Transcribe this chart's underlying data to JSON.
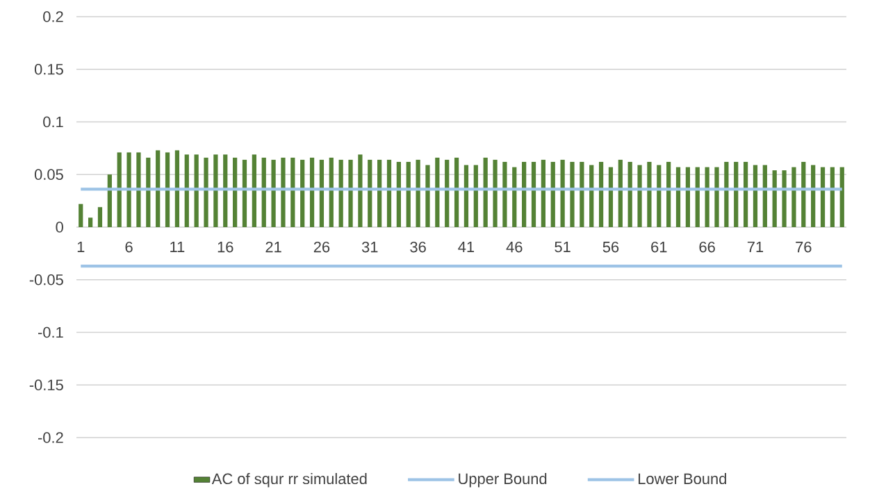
{
  "chart_data": {
    "type": "bar",
    "categories": [
      "1",
      null,
      null,
      null,
      null,
      "6",
      null,
      null,
      null,
      null,
      "11",
      null,
      null,
      null,
      null,
      "16",
      null,
      null,
      null,
      null,
      "21",
      null,
      null,
      null,
      null,
      "26",
      null,
      null,
      null,
      null,
      "31",
      null,
      null,
      null,
      null,
      "36",
      null,
      null,
      null,
      null,
      "41",
      null,
      null,
      null,
      null,
      "46",
      null,
      null,
      null,
      null,
      "51",
      null,
      null,
      null,
      null,
      "56",
      null,
      null,
      null,
      null,
      "61",
      null,
      null,
      null,
      null,
      "66",
      null,
      null,
      null,
      null,
      "71",
      null,
      null,
      null,
      null,
      "76",
      null,
      null,
      null,
      null
    ],
    "series": [
      {
        "name": "AC of squr rr simulated",
        "color": "#548235",
        "values": [
          0.022,
          0.009,
          0.019,
          0.05,
          0.071,
          0.071,
          0.071,
          0.066,
          0.073,
          0.071,
          0.073,
          0.069,
          0.069,
          0.066,
          0.069,
          0.069,
          0.066,
          0.064,
          0.069,
          0.066,
          0.064,
          0.066,
          0.066,
          0.064,
          0.066,
          0.064,
          0.066,
          0.064,
          0.064,
          0.069,
          0.064,
          0.064,
          0.064,
          0.062,
          0.062,
          0.064,
          0.059,
          0.066,
          0.064,
          0.066,
          0.059,
          0.059,
          0.066,
          0.064,
          0.062,
          0.057,
          0.062,
          0.062,
          0.064,
          0.062,
          0.064,
          0.062,
          0.062,
          0.059,
          0.062,
          0.057,
          0.064,
          0.062,
          0.059,
          0.062,
          0.059,
          0.062,
          0.057,
          0.057,
          0.057,
          0.057,
          0.057,
          0.062,
          0.062,
          0.062,
          0.059,
          0.059,
          0.054,
          0.054,
          0.057,
          0.062,
          0.059,
          0.057,
          0.057,
          0.057
        ]
      },
      {
        "name": "Upper Bound",
        "type": "line",
        "color": "#9dc3e6",
        "values": [
          0.036,
          0.036,
          0.036,
          0.036,
          0.036,
          0.036,
          0.036,
          0.036,
          0.036,
          0.036,
          0.036,
          0.036,
          0.036,
          0.036,
          0.036,
          0.036,
          0.036,
          0.036,
          0.036,
          0.036,
          0.036,
          0.036,
          0.036,
          0.036,
          0.036,
          0.036,
          0.036,
          0.036,
          0.036,
          0.036,
          0.036,
          0.036,
          0.036,
          0.036,
          0.036,
          0.036,
          0.036,
          0.036,
          0.036,
          0.036,
          0.036,
          0.036,
          0.036,
          0.036,
          0.036,
          0.036,
          0.036,
          0.036,
          0.036,
          0.036,
          0.036,
          0.036,
          0.036,
          0.036,
          0.036,
          0.036,
          0.036,
          0.036,
          0.036,
          0.036,
          0.036,
          0.036,
          0.036,
          0.036,
          0.036,
          0.036,
          0.036,
          0.036,
          0.036,
          0.036,
          0.036,
          0.036,
          0.036,
          0.036,
          0.036,
          0.036,
          0.036,
          0.036,
          0.036,
          0.036
        ]
      },
      {
        "name": "Lower Bound",
        "type": "line",
        "color": "#9dc3e6",
        "values": [
          -0.037,
          -0.037,
          -0.037,
          -0.037,
          -0.037,
          -0.037,
          -0.037,
          -0.037,
          -0.037,
          -0.037,
          -0.037,
          -0.037,
          -0.037,
          -0.037,
          -0.037,
          -0.037,
          -0.037,
          -0.037,
          -0.037,
          -0.037,
          -0.037,
          -0.037,
          -0.037,
          -0.037,
          -0.037,
          -0.037,
          -0.037,
          -0.037,
          -0.037,
          -0.037,
          -0.037,
          -0.037,
          -0.037,
          -0.037,
          -0.037,
          -0.037,
          -0.037,
          -0.037,
          -0.037,
          -0.037,
          -0.037,
          -0.037,
          -0.037,
          -0.037,
          -0.037,
          -0.037,
          -0.037,
          -0.037,
          -0.037,
          -0.037,
          -0.037,
          -0.037,
          -0.037,
          -0.037,
          -0.037,
          -0.037,
          -0.037,
          -0.037,
          -0.037,
          -0.037,
          -0.037,
          -0.037,
          -0.037,
          -0.037,
          -0.037,
          -0.037,
          -0.037,
          -0.037,
          -0.037,
          -0.037,
          -0.037,
          -0.037,
          -0.037,
          -0.037,
          -0.037,
          -0.037,
          -0.037,
          -0.037,
          -0.037,
          -0.037
        ]
      }
    ],
    "ylim": [
      -0.2,
      0.2
    ],
    "yticks": [
      -0.2,
      -0.15,
      -0.1,
      -0.05,
      0,
      0.05,
      0.1,
      0.15,
      0.2
    ],
    "grid": "y",
    "legend": "bottom"
  }
}
